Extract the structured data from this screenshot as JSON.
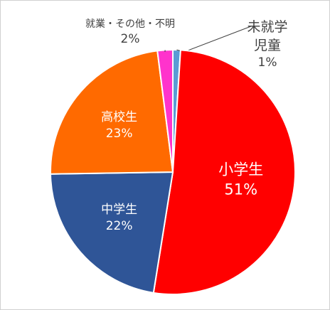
{
  "chart_data": {
    "type": "pie",
    "categories": [
      "未就学児童",
      "小学生",
      "中学生",
      "高校生",
      "就業・その他・不明"
    ],
    "values": [
      1,
      51,
      22,
      23,
      2
    ],
    "value_labels": [
      "1%",
      "51%",
      "22%",
      "23%",
      "2%"
    ],
    "colors": [
      "#5b9bd5",
      "#ff0000",
      "#2f5597",
      "#ff6a00",
      "#ff33cc"
    ]
  }
}
